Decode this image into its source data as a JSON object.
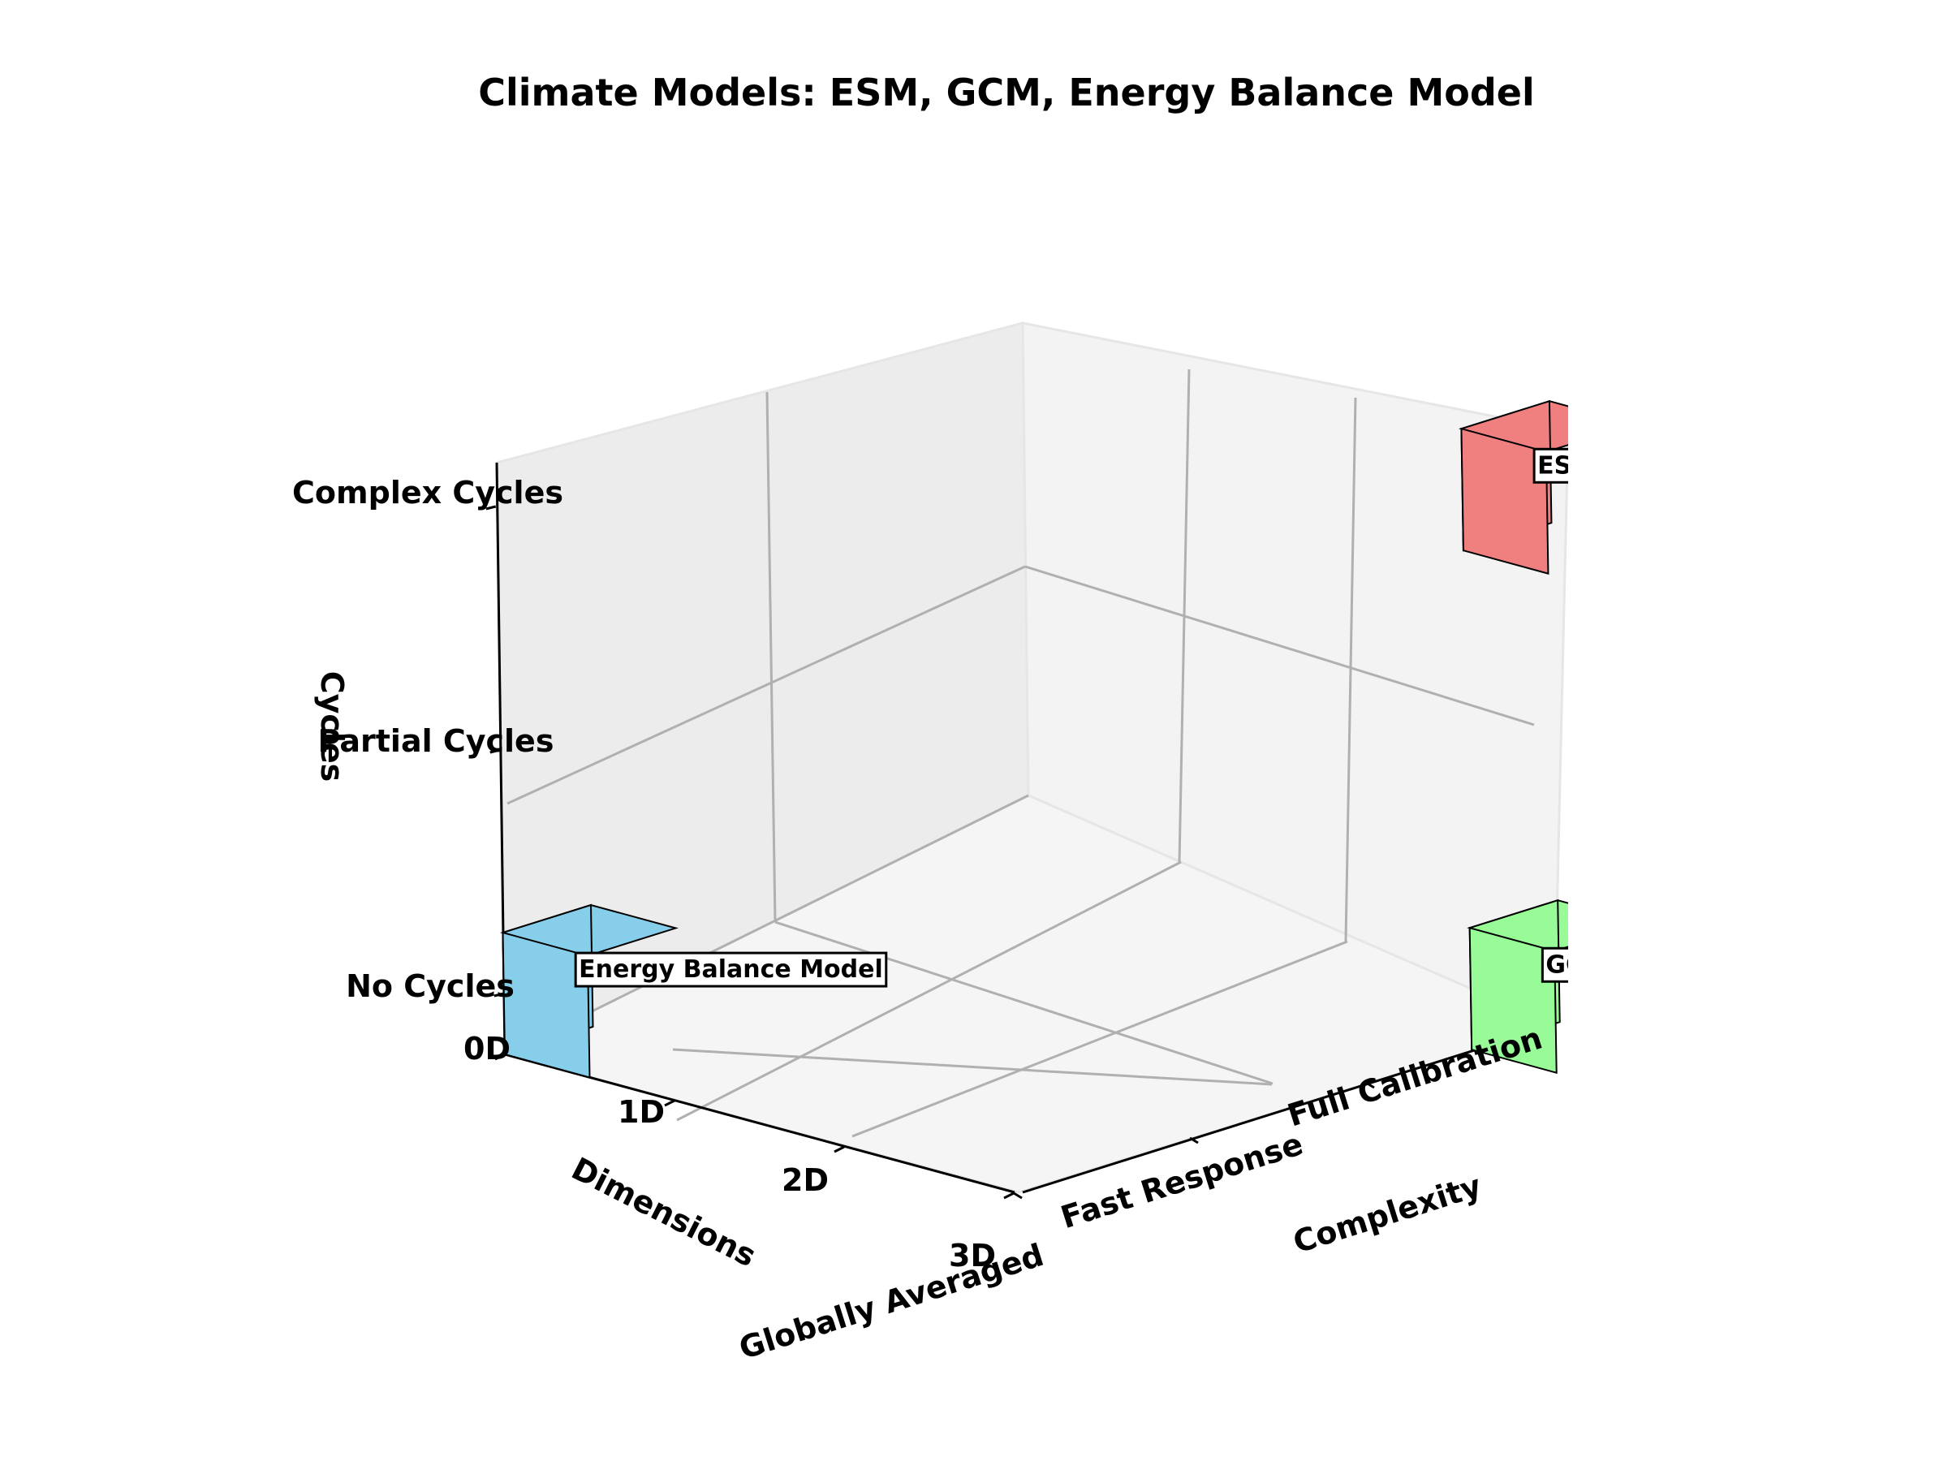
{
  "chart_data": {
    "type": "3d-bar",
    "title": "Climate Models: ESM, GCM, Energy Balance Model",
    "axes": {
      "x": {
        "label": "Dimensions",
        "ticks": [
          "0D",
          "1D",
          "2D",
          "3D"
        ]
      },
      "y": {
        "label": "Complexity",
        "ticks": [
          "Globally Averaged",
          "Fast Response",
          "Full Calibration"
        ]
      },
      "z": {
        "label": "Cycles",
        "ticks": [
          "No Cycles",
          "Partial Cycles",
          "Complex Cycles"
        ]
      }
    },
    "grid": true,
    "models": [
      {
        "name": "Energy Balance Model",
        "dimensions": "0D",
        "complexity": "Globally Averaged",
        "cycles": "No Cycles",
        "color": "#87ceeb"
      },
      {
        "name": "GCM",
        "dimensions": "3D",
        "complexity": "Full Calibration",
        "cycles": "No Cycles",
        "color": "#98fb98"
      },
      {
        "name": "ESM",
        "dimensions": "3D",
        "complexity": "Full Calibration",
        "cycles": "Complex Cycles",
        "color": "#f08080"
      }
    ]
  }
}
